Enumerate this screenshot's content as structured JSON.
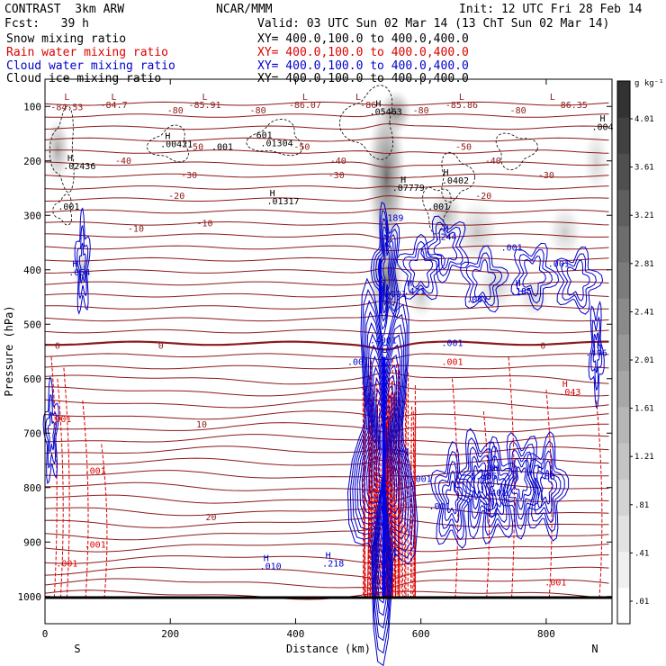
{
  "header": {
    "title_left": "CONTRAST  3km ARW",
    "title_center": "NCAR/MMM",
    "init": "Init: 12 UTC Fri 28 Feb 14",
    "fcst": "Fcst:   39 h",
    "valid": "Valid: 03 UTC Sun 02 Mar 14 (13 ChT Sun 02 Mar 14)",
    "xy": "XY= 400.0,100.0 to 400.0,400.0"
  },
  "fields": [
    {
      "label": "Snow mixing ratio",
      "color": "#000000"
    },
    {
      "label": "Rain water mixing ratio",
      "color": "#dd0000"
    },
    {
      "label": "Cloud water mixing ratio",
      "color": "#0000cc"
    },
    {
      "label": "Cloud ice mixing ratio",
      "color": "#000000"
    }
  ],
  "chart_data": {
    "type": "heatmap",
    "xlabel": "Distance (km)",
    "ylabel": "Pressure (hPa)",
    "xlim": [
      0,
      905
    ],
    "ylim": [
      1050,
      50
    ],
    "x_ticks": [
      0,
      200,
      400,
      600,
      800
    ],
    "x_tick_labels": [
      "0",
      "200",
      "400",
      "600",
      "800"
    ],
    "y_ticks": [
      100,
      200,
      300,
      400,
      500,
      600,
      700,
      800,
      900,
      1000
    ],
    "y_tick_labels": [
      "100",
      "200",
      "300",
      "400",
      "500",
      "600",
      "700",
      "800",
      "900",
      "1000"
    ],
    "endpoints": {
      "left": "S",
      "right": "N"
    },
    "colorbar": {
      "unit_label": "g kg⁻¹",
      "levels": [
        ".01",
        ".41",
        ".81",
        "1.21",
        "1.61",
        "2.01",
        "2.41",
        "2.81",
        "3.21",
        "3.61",
        "4.01"
      ]
    },
    "temperature_isotherms": [
      {
        "label": "-80",
        "p": 122
      },
      {
        "label": "-50",
        "p": 180
      },
      {
        "label": "-40",
        "p": 205
      },
      {
        "label": "-30",
        "p": 232
      },
      {
        "label": "-20",
        "p": 270
      },
      {
        "label": "-10",
        "p": 330
      },
      {
        "label": "0",
        "p": 545
      },
      {
        "label": "10",
        "p": 690
      },
      {
        "label": "20",
        "p": 860
      }
    ],
    "annotations": [
      {
        "text": "L",
        "x": 35,
        "p": 88,
        "color": "#8b1a1a"
      },
      {
        "text": "-84.53",
        "x": 35,
        "p": 107,
        "color": "#8b1a1a"
      },
      {
        "text": "L",
        "x": 110,
        "p": 88,
        "color": "#8b1a1a"
      },
      {
        "text": "-84.7",
        "x": 110,
        "p": 103,
        "color": "#8b1a1a"
      },
      {
        "text": "-80",
        "x": 208,
        "p": 113,
        "color": "#8b1a1a"
      },
      {
        "text": "L",
        "x": 255,
        "p": 88,
        "color": "#8b1a1a"
      },
      {
        "text": "-85.91",
        "x": 255,
        "p": 103,
        "color": "#8b1a1a"
      },
      {
        "text": "-80",
        "x": 340,
        "p": 113,
        "color": "#8b1a1a"
      },
      {
        "text": "L",
        "x": 415,
        "p": 88,
        "color": "#8b1a1a"
      },
      {
        "text": "-86.07",
        "x": 415,
        "p": 103,
        "color": "#8b1a1a"
      },
      {
        "text": "L",
        "x": 500,
        "p": 88,
        "color": "#8b1a1a"
      },
      {
        "text": "-86",
        "x": 516,
        "p": 103,
        "color": "#8b1a1a"
      },
      {
        "text": "-80",
        "x": 600,
        "p": 113,
        "color": "#8b1a1a"
      },
      {
        "text": "L",
        "x": 665,
        "p": 88,
        "color": "#8b1a1a"
      },
      {
        "text": "-85.86",
        "x": 665,
        "p": 103,
        "color": "#8b1a1a"
      },
      {
        "text": "-80",
        "x": 755,
        "p": 113,
        "color": "#8b1a1a"
      },
      {
        "text": "L",
        "x": 810,
        "p": 88,
        "color": "#8b1a1a"
      },
      {
        "text": "-86.35",
        "x": 840,
        "p": 103,
        "color": "#8b1a1a"
      },
      {
        "text": "H",
        "x": 890,
        "p": 128,
        "color": "#000000"
      },
      {
        "text": ".004",
        "x": 890,
        "p": 143,
        "color": "#000000"
      },
      {
        "text": "H",
        "x": 532,
        "p": 100,
        "color": "#000000"
      },
      {
        "text": ".05463",
        "x": 544,
        "p": 115,
        "color": "#000000"
      },
      {
        "text": "H",
        "x": 40,
        "p": 200,
        "color": "#000000"
      },
      {
        "text": ".02436",
        "x": 55,
        "p": 215,
        "color": "#000000"
      },
      {
        "text": "H",
        "x": 196,
        "p": 160,
        "color": "#000000"
      },
      {
        "text": ".00421",
        "x": 210,
        "p": 175,
        "color": "#000000"
      },
      {
        "text": "-50",
        "x": 240,
        "p": 180,
        "color": "#8b1a1a"
      },
      {
        "text": ".001",
        "x": 283,
        "p": 180,
        "color": "#000000"
      },
      {
        "text": "601",
        "x": 350,
        "p": 158,
        "color": "#000000"
      },
      {
        "text": ".01304",
        "x": 370,
        "p": 173,
        "color": "#000000"
      },
      {
        "text": "-50",
        "x": 410,
        "p": 180,
        "color": "#8b1a1a"
      },
      {
        "text": "-40",
        "x": 125,
        "p": 205,
        "color": "#8b1a1a"
      },
      {
        "text": "-40",
        "x": 468,
        "p": 205,
        "color": "#8b1a1a"
      },
      {
        "text": "H",
        "x": 572,
        "p": 240,
        "color": "#000000"
      },
      {
        "text": ".07779",
        "x": 580,
        "p": 255,
        "color": "#000000"
      },
      {
        "text": "H",
        "x": 640,
        "p": 227,
        "color": "#000000"
      },
      {
        "text": ".0402",
        "x": 655,
        "p": 242,
        "color": "#000000"
      },
      {
        "text": "-50",
        "x": 668,
        "p": 180,
        "color": "#8b1a1a"
      },
      {
        "text": "-40",
        "x": 715,
        "p": 205,
        "color": "#8b1a1a"
      },
      {
        "text": "H",
        "x": 363,
        "p": 265,
        "color": "#000000"
      },
      {
        "text": ".01317",
        "x": 380,
        "p": 280,
        "color": "#000000"
      },
      {
        "text": "-30",
        "x": 230,
        "p": 232,
        "color": "#8b1a1a"
      },
      {
        "text": "-30",
        "x": 465,
        "p": 232,
        "color": "#8b1a1a"
      },
      {
        "text": "-30",
        "x": 800,
        "p": 232,
        "color": "#8b1a1a"
      },
      {
        "text": ".001",
        "x": 38,
        "p": 290,
        "color": "#000000"
      },
      {
        "text": ".001",
        "x": 628,
        "p": 290,
        "color": "#000000"
      },
      {
        "text": "-20",
        "x": 210,
        "p": 270,
        "color": "#8b1a1a"
      },
      {
        "text": "-20",
        "x": 700,
        "p": 270,
        "color": "#8b1a1a"
      },
      {
        "text": ".189",
        "x": 555,
        "p": 310,
        "color": "#0000cc"
      },
      {
        "text": "H",
        "x": 640,
        "p": 330,
        "color": "#0000cc"
      },
      {
        "text": ".244",
        "x": 640,
        "p": 345,
        "color": "#0000cc"
      },
      {
        "text": "H",
        "x": 48,
        "p": 395,
        "color": "#0000cc"
      },
      {
        "text": ".054",
        "x": 55,
        "p": 410,
        "color": "#0000cc"
      },
      {
        "text": "-10",
        "x": 145,
        "p": 330,
        "color": "#8b1a1a"
      },
      {
        "text": "-10",
        "x": 255,
        "p": 320,
        "color": "#8b1a1a"
      },
      {
        "text": ".001",
        "x": 745,
        "p": 365,
        "color": "#0000cc"
      },
      {
        "text": ".001",
        "x": 820,
        "p": 395,
        "color": "#0000cc"
      },
      {
        "text": "H",
        "x": 582,
        "p": 430,
        "color": "#0000cc"
      },
      {
        "text": ".421",
        "x": 590,
        "p": 445,
        "color": "#0000cc"
      },
      {
        "text": "H",
        "x": 755,
        "p": 430,
        "color": "#0000cc"
      },
      {
        "text": ".185",
        "x": 760,
        "p": 445,
        "color": "#0000cc"
      },
      {
        "text": ".001",
        "x": 560,
        "p": 450,
        "color": "#0000cc"
      },
      {
        "text": ".001",
        "x": 690,
        "p": 460,
        "color": "#0000cc"
      },
      {
        "text": "0",
        "x": 20,
        "p": 545,
        "color": "#8b1a1a"
      },
      {
        "text": "0",
        "x": 185,
        "p": 545,
        "color": "#8b1a1a"
      },
      {
        "text": "0",
        "x": 795,
        "p": 545,
        "color": "#8b1a1a"
      },
      {
        "text": "H",
        "x": 885,
        "p": 545,
        "color": "#0000cc"
      },
      {
        "text": ".496",
        "x": 880,
        "p": 558,
        "color": "#0000cc"
      },
      {
        "text": ".4001",
        "x": 540,
        "p": 535,
        "color": "#0000cc"
      },
      {
        "text": ".001",
        "x": 650,
        "p": 540,
        "color": "#0000cc"
      },
      {
        "text": ".001",
        "x": 500,
        "p": 575,
        "color": "#0000cc"
      },
      {
        "text": ".001",
        "x": 650,
        "p": 575,
        "color": "#dd0000"
      },
      {
        "text": "H",
        "x": 830,
        "p": 615,
        "color": "#dd0000"
      },
      {
        "text": ".043",
        "x": 838,
        "p": 630,
        "color": "#dd0000"
      },
      {
        "text": "10",
        "x": 250,
        "p": 690,
        "color": "#8b1a1a"
      },
      {
        "text": ".001",
        "x": 25,
        "p": 680,
        "color": "#dd0000"
      },
      {
        "text": ".001",
        "x": 565,
        "p": 740,
        "color": "#0000cc"
      },
      {
        "text": ".001",
        "x": 600,
        "p": 790,
        "color": "#0000cc"
      },
      {
        "text": "H",
        "x": 720,
        "p": 770,
        "color": "#0000cc"
      },
      {
        "text": "1.085",
        "x": 700,
        "p": 785,
        "color": "#0000cc"
      },
      {
        "text": "H",
        "x": 790,
        "p": 770,
        "color": "#0000cc"
      },
      {
        "text": ".788",
        "x": 797,
        "p": 785,
        "color": "#0000cc"
      },
      {
        "text": ".001",
        "x": 80,
        "p": 775,
        "color": "#dd0000"
      },
      {
        "text": ".401",
        "x": 720,
        "p": 815,
        "color": "#0000cc"
      },
      {
        "text": ".001",
        "x": 630,
        "p": 840,
        "color": "#0000cc"
      },
      {
        "text": "20",
        "x": 265,
        "p": 860,
        "color": "#8b1a1a"
      },
      {
        "text": ".001",
        "x": 80,
        "p": 910,
        "color": "#dd0000"
      },
      {
        "text": "H",
        "x": 353,
        "p": 935,
        "color": "#0000cc"
      },
      {
        "text": ".010",
        "x": 360,
        "p": 950,
        "color": "#0000cc"
      },
      {
        "text": "H",
        "x": 452,
        "p": 930,
        "color": "#0000cc"
      },
      {
        "text": ".218",
        "x": 460,
        "p": 945,
        "color": "#0000cc"
      },
      {
        "text": ".001",
        "x": 545,
        "p": 925,
        "color": "#0000cc"
      },
      {
        "text": ".001",
        "x": 35,
        "p": 945,
        "color": "#dd0000"
      },
      {
        "text": ".001",
        "x": 815,
        "p": 980,
        "color": "#dd0000"
      }
    ]
  }
}
